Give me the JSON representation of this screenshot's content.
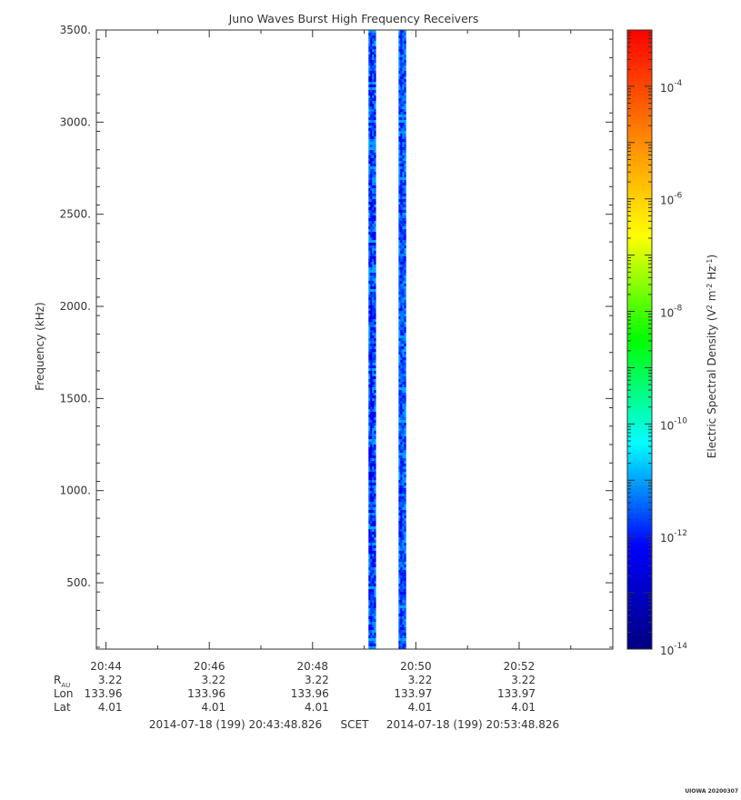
{
  "chart_data": {
    "type": "heatmap",
    "title": "Juno Waves Burst High Frequency Receivers",
    "ylabel": "Frequency (kHz)",
    "ylim": [
      140,
      3500
    ],
    "y_ticks": [
      500,
      1000,
      1500,
      2000,
      2500,
      3000,
      3500
    ],
    "y_tick_labels": [
      "500.",
      "1000.",
      "1500.",
      "2000.",
      "2500.",
      "3000.",
      "3500."
    ],
    "x_tick_labels": [
      "20:44",
      "20:46",
      "20:48",
      "20:50",
      "20:52"
    ],
    "colorbar": {
      "label": "Electric Spectral Density (V² m⁻² Hz⁻¹)",
      "label_parts": [
        "Electric Spectral Density (V",
        "2",
        " m",
        "-2",
        " Hz",
        "-1",
        ")"
      ],
      "scale": "log",
      "range_exponent": [
        -14,
        -3
      ],
      "tick_exponents": [
        -14,
        -12,
        -10,
        -8,
        -6,
        -4
      ],
      "tick_base": "10",
      "colors": [
        "#000080",
        "#0000ff",
        "#00ffff",
        "#00ff00",
        "#ffff00",
        "#ff8000",
        "#ff0000"
      ]
    },
    "series": [
      {
        "time_start": "20:49:05",
        "time_end": "20:49:13",
        "level_exponent_range": [
          -13,
          -11
        ]
      },
      {
        "time_start": "20:49:40",
        "time_end": "20:49:47",
        "level_exponent_range": [
          -12.5,
          -11
        ]
      }
    ],
    "ephemeris": {
      "rows": [
        {
          "label": "R",
          "label_sub": "AU",
          "values": [
            "3.22",
            "3.22",
            "3.22",
            "3.22",
            "3.22"
          ]
        },
        {
          "label": "Lon",
          "label_sub": "",
          "values": [
            "133.96",
            "133.96",
            "133.96",
            "133.97",
            "133.97"
          ]
        },
        {
          "label": "Lat",
          "label_sub": "",
          "values": [
            "4.01",
            "4.01",
            "4.01",
            "4.01",
            "4.01"
          ]
        }
      ]
    },
    "time_range": {
      "start": "2014-07-18 (199) 20:43:48.826",
      "frame": "SCET",
      "end": "2014-07-18 (199) 20:53:48.826"
    },
    "stamp": "UIOWA 20200307"
  }
}
